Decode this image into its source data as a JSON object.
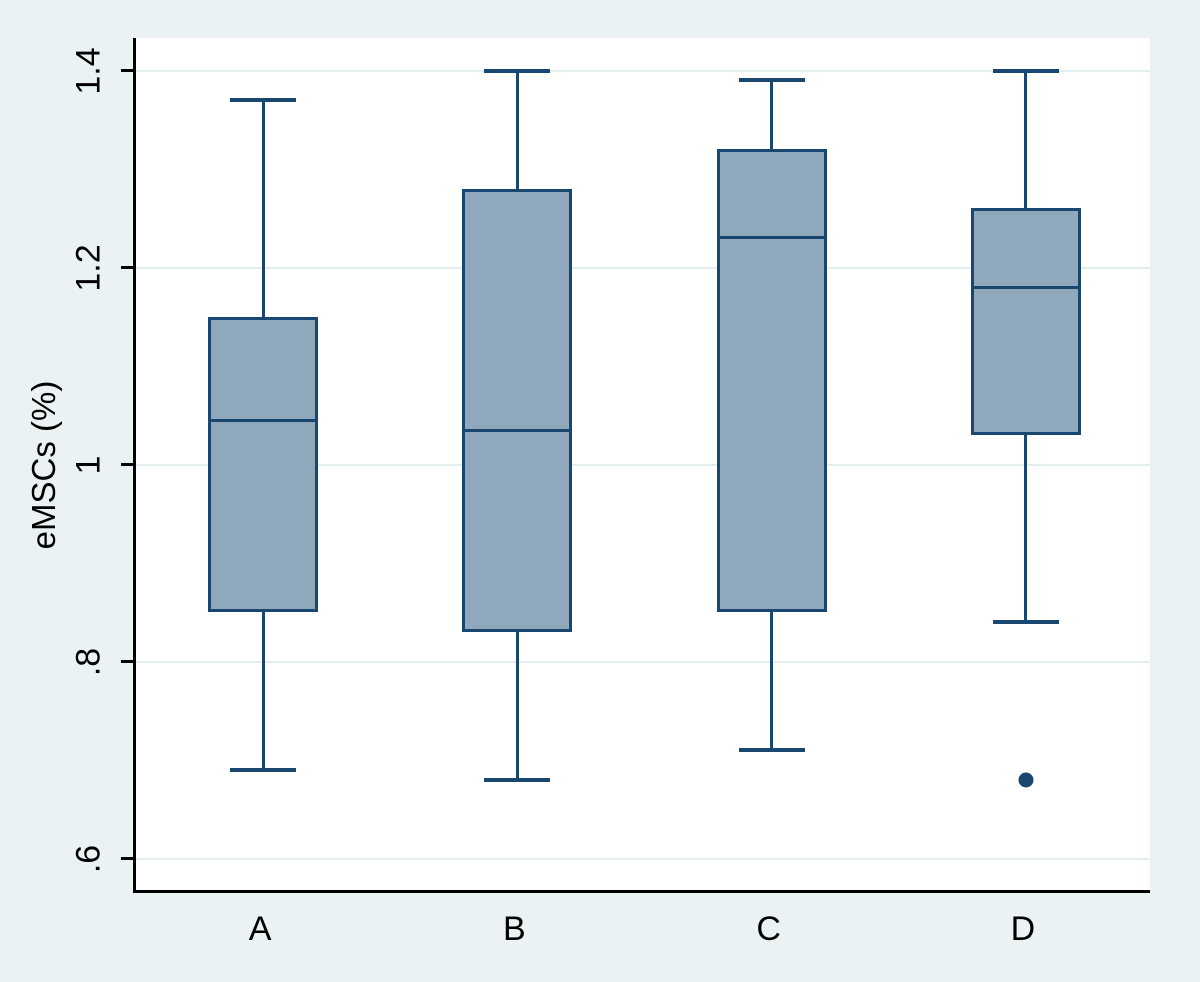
{
  "chart_data": {
    "type": "box",
    "title": "",
    "xlabel": "",
    "ylabel": "eMSCs (%)",
    "categories": [
      "A",
      "B",
      "C",
      "D"
    ],
    "series": [
      {
        "category": "A",
        "whisker_low": 0.69,
        "q1": 0.85,
        "median": 1.045,
        "q3": 1.15,
        "whisker_high": 1.37,
        "outliers": []
      },
      {
        "category": "B",
        "whisker_low": 0.68,
        "q1": 0.83,
        "median": 1.035,
        "q3": 1.28,
        "whisker_high": 1.4,
        "outliers": []
      },
      {
        "category": "C",
        "whisker_low": 0.71,
        "q1": 0.85,
        "median": 1.23,
        "q3": 1.32,
        "whisker_high": 1.39,
        "outliers": []
      },
      {
        "category": "D",
        "whisker_low": 0.84,
        "q1": 1.03,
        "median": 1.18,
        "q3": 1.26,
        "whisker_high": 1.4,
        "outliers": [
          0.68
        ]
      }
    ],
    "yticks": [
      {
        "value": 0.6,
        "label": ".6"
      },
      {
        "value": 0.8,
        "label": ".8"
      },
      {
        "value": 1.0,
        "label": "1"
      },
      {
        "value": 1.2,
        "label": "1.2"
      },
      {
        "value": 1.4,
        "label": "1.4"
      }
    ],
    "ylim": [
      0.565,
      1.433
    ],
    "grid": true,
    "legend": null,
    "colors": {
      "canvas_background": "#eaf2f3",
      "plot_background": "#ffffff",
      "gridline": "#e4eef1",
      "axis_line": "#000000",
      "text": "#000000",
      "box_fill": "#90a8bb",
      "box_border": "#1a476f",
      "median": "#1a476f",
      "whisker": "#1a476f",
      "outlier": "#1a476f"
    }
  }
}
